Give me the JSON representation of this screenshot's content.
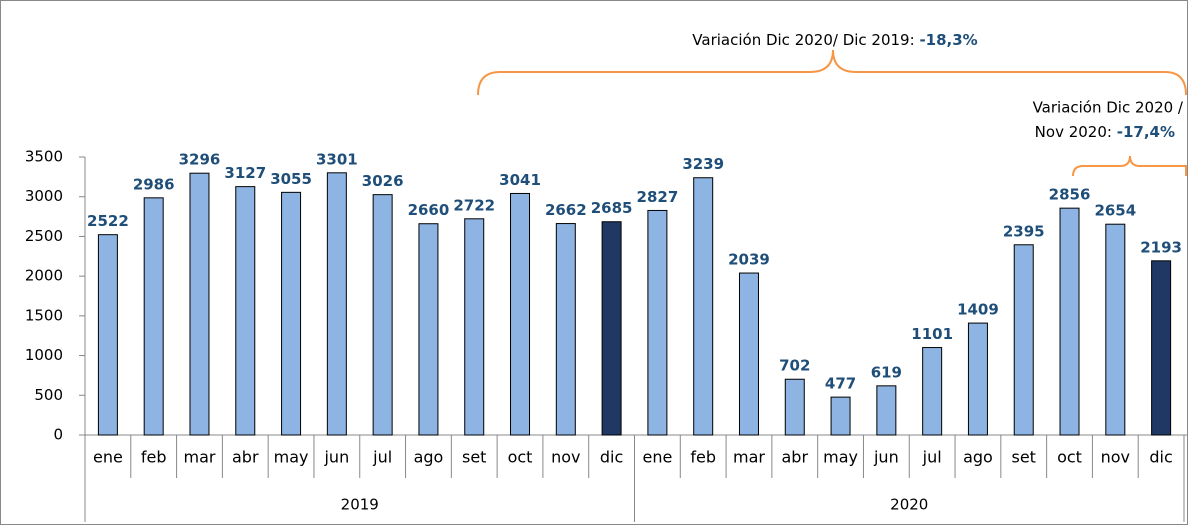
{
  "chart_data": {
    "type": "bar",
    "categories": [
      "ene",
      "feb",
      "mar",
      "abr",
      "may",
      "jun",
      "jul",
      "ago",
      "set",
      "oct",
      "nov",
      "dic",
      "ene",
      "feb",
      "mar",
      "abr",
      "may",
      "jun",
      "jul",
      "ago",
      "set",
      "oct",
      "nov",
      "dic"
    ],
    "groups": [
      "2019",
      "2020"
    ],
    "values": [
      2522,
      2986,
      3296,
      3127,
      3055,
      3301,
      3026,
      2660,
      2722,
      3041,
      2662,
      2685,
      2827,
      3239,
      2039,
      702,
      477,
      619,
      1101,
      1409,
      2395,
      2856,
      2654,
      2193
    ],
    "colors": [
      "#8db4e2",
      "#8db4e2",
      "#8db4e2",
      "#8db4e2",
      "#8db4e2",
      "#8db4e2",
      "#8db4e2",
      "#8db4e2",
      "#8db4e2",
      "#8db4e2",
      "#8db4e2",
      "#1f3864",
      "#8db4e2",
      "#8db4e2",
      "#8db4e2",
      "#8db4e2",
      "#8db4e2",
      "#8db4e2",
      "#8db4e2",
      "#8db4e2",
      "#8db4e2",
      "#8db4e2",
      "#8db4e2",
      "#1f3864"
    ],
    "ylim": [
      0,
      3500
    ],
    "yticks": [
      0,
      500,
      1000,
      1500,
      2000,
      2500,
      3000,
      3500
    ],
    "annotations": [
      {
        "lines": [
          "Variación Dic 2020/ Dic 2019:"
        ],
        "value_text": "-18,3%"
      },
      {
        "lines": [
          "Variación Dic 2020 /",
          "Nov 2020:"
        ],
        "value_text": "-17,4%"
      }
    ]
  }
}
